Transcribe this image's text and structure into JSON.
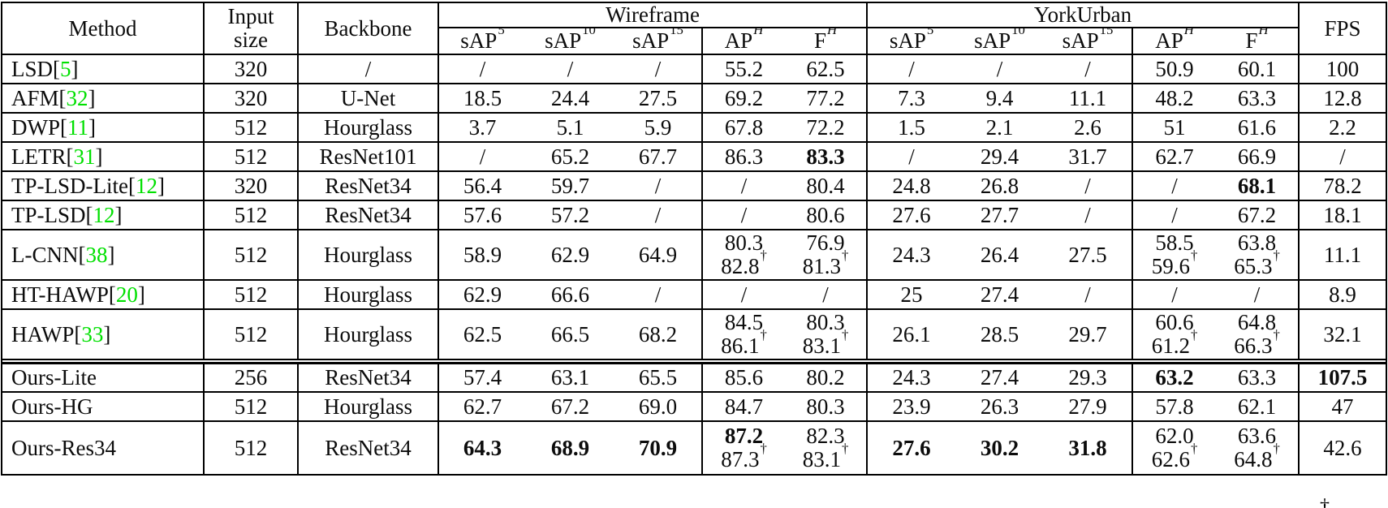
{
  "table": {
    "header": {
      "method": "Method",
      "input_size_lines": [
        "Input",
        "size"
      ],
      "backbone": "Backbone",
      "groups": [
        {
          "label": "Wireframe"
        },
        {
          "label": "YorkUrban"
        }
      ],
      "fps": "FPS",
      "metric_cols": [
        {
          "base": "sAP",
          "sup": "5",
          "italic_sup": false
        },
        {
          "base": "sAP",
          "sup": "10",
          "italic_sup": false
        },
        {
          "base": "sAP",
          "sup": "15",
          "italic_sup": false
        },
        {
          "base": "AP",
          "sup": "H",
          "italic_sup": true
        },
        {
          "base": "F",
          "sup": "H",
          "italic_sup": true
        }
      ]
    },
    "footnote_symbol": "†",
    "colors": {
      "citation_green": "#00e000"
    },
    "rows": [
      {
        "group": "baseline",
        "method": {
          "name": "LSD",
          "ref": "5"
        },
        "input": "320",
        "backbone": "/",
        "wireframe": [
          {
            "t": "/"
          },
          {
            "t": "/"
          },
          {
            "t": "/"
          },
          {
            "t": "55.2"
          },
          {
            "t": "62.5"
          }
        ],
        "yorkurban": [
          {
            "t": "/"
          },
          {
            "t": "/"
          },
          {
            "t": "/"
          },
          {
            "t": "50.9"
          },
          {
            "t": "60.1"
          }
        ],
        "fps": {
          "t": "100"
        }
      },
      {
        "group": "baseline",
        "method": {
          "name": "AFM",
          "ref": "32"
        },
        "input": "320",
        "backbone": "U-Net",
        "wireframe": [
          {
            "t": "18.5"
          },
          {
            "t": "24.4"
          },
          {
            "t": "27.5"
          },
          {
            "t": "69.2"
          },
          {
            "t": "77.2"
          }
        ],
        "yorkurban": [
          {
            "t": "7.3"
          },
          {
            "t": "9.4"
          },
          {
            "t": "11.1"
          },
          {
            "t": "48.2"
          },
          {
            "t": "63.3"
          }
        ],
        "fps": {
          "t": "12.8"
        }
      },
      {
        "group": "baseline",
        "method": {
          "name": "DWP",
          "ref": "11"
        },
        "input": "512",
        "backbone": "Hourglass",
        "wireframe": [
          {
            "t": "3.7"
          },
          {
            "t": "5.1"
          },
          {
            "t": "5.9"
          },
          {
            "t": "67.8"
          },
          {
            "t": "72.2"
          }
        ],
        "yorkurban": [
          {
            "t": "1.5"
          },
          {
            "t": "2.1"
          },
          {
            "t": "2.6"
          },
          {
            "t": "51"
          },
          {
            "t": "61.6"
          }
        ],
        "fps": {
          "t": "2.2"
        }
      },
      {
        "group": "baseline",
        "method": {
          "name": "LETR",
          "ref": "31"
        },
        "input": "512",
        "backbone": "ResNet101",
        "wireframe": [
          {
            "t": "/"
          },
          {
            "t": "65.2"
          },
          {
            "t": "67.7"
          },
          {
            "t": "86.3"
          },
          {
            "t": "83.3",
            "b": true
          }
        ],
        "yorkurban": [
          {
            "t": "/"
          },
          {
            "t": "29.4"
          },
          {
            "t": "31.7"
          },
          {
            "t": "62.7"
          },
          {
            "t": "66.9"
          }
        ],
        "fps": {
          "t": "/"
        }
      },
      {
        "group": "baseline",
        "method": {
          "name": "TP-LSD-Lite",
          "ref": "12"
        },
        "input": "320",
        "backbone": "ResNet34",
        "wireframe": [
          {
            "t": "56.4"
          },
          {
            "t": "59.7"
          },
          {
            "t": "/"
          },
          {
            "t": "/"
          },
          {
            "t": "80.4"
          }
        ],
        "yorkurban": [
          {
            "t": "24.8"
          },
          {
            "t": "26.8"
          },
          {
            "t": "/"
          },
          {
            "t": "/"
          },
          {
            "t": "68.1",
            "b": true
          }
        ],
        "fps": {
          "t": "78.2"
        }
      },
      {
        "group": "baseline",
        "method": {
          "name": "TP-LSD",
          "ref": "12"
        },
        "input": "512",
        "backbone": "ResNet34",
        "wireframe": [
          {
            "t": "57.6"
          },
          {
            "t": "57.2"
          },
          {
            "t": "/"
          },
          {
            "t": "/"
          },
          {
            "t": "80.6"
          }
        ],
        "yorkurban": [
          {
            "t": "27.6"
          },
          {
            "t": "27.7"
          },
          {
            "t": "/"
          },
          {
            "t": "/"
          },
          {
            "t": "67.2"
          }
        ],
        "fps": {
          "t": "18.1"
        }
      },
      {
        "group": "baseline",
        "method": {
          "name": "L-CNN",
          "ref": "38"
        },
        "input": "512",
        "backbone": "Hourglass",
        "wireframe": [
          {
            "t": "58.9"
          },
          {
            "t": "62.9"
          },
          {
            "t": "64.9"
          },
          {
            "lines": [
              {
                "t": "80.3"
              },
              {
                "t": "82.8",
                "dagger": true
              }
            ]
          },
          {
            "lines": [
              {
                "t": "76.9"
              },
              {
                "t": "81.3",
                "dagger": true
              }
            ]
          }
        ],
        "yorkurban": [
          {
            "t": "24.3"
          },
          {
            "t": "26.4"
          },
          {
            "t": "27.5"
          },
          {
            "lines": [
              {
                "t": "58.5"
              },
              {
                "t": "59.6",
                "dagger": true
              }
            ]
          },
          {
            "lines": [
              {
                "t": "63.8"
              },
              {
                "t": "65.3",
                "dagger": true
              }
            ]
          }
        ],
        "fps": {
          "t": "11.1"
        }
      },
      {
        "group": "baseline",
        "method": {
          "name": "HT-HAWP",
          "ref": "20"
        },
        "input": "512",
        "backbone": "Hourglass",
        "wireframe": [
          {
            "t": "62.9"
          },
          {
            "t": "66.6"
          },
          {
            "t": "/"
          },
          {
            "t": "/"
          },
          {
            "t": "/"
          }
        ],
        "yorkurban": [
          {
            "t": "25"
          },
          {
            "t": "27.4"
          },
          {
            "t": "/"
          },
          {
            "t": "/"
          },
          {
            "t": "/"
          }
        ],
        "fps": {
          "t": "8.9"
        }
      },
      {
        "group": "baseline",
        "method": {
          "name": "HAWP",
          "ref": "33"
        },
        "input": "512",
        "backbone": "Hourglass",
        "wireframe": [
          {
            "t": "62.5"
          },
          {
            "t": "66.5"
          },
          {
            "t": "68.2"
          },
          {
            "lines": [
              {
                "t": "84.5"
              },
              {
                "t": "86.1",
                "dagger": true
              }
            ]
          },
          {
            "lines": [
              {
                "t": "80.3"
              },
              {
                "t": "83.1",
                "dagger": true
              }
            ]
          }
        ],
        "yorkurban": [
          {
            "t": "26.1"
          },
          {
            "t": "28.5"
          },
          {
            "t": "29.7"
          },
          {
            "lines": [
              {
                "t": "60.6"
              },
              {
                "t": "61.2",
                "dagger": true
              }
            ]
          },
          {
            "lines": [
              {
                "t": "64.8"
              },
              {
                "t": "66.3",
                "dagger": true
              }
            ]
          }
        ],
        "fps": {
          "t": "32.1"
        }
      },
      {
        "group": "ours",
        "method": {
          "name": "Ours-Lite",
          "ref": null
        },
        "input": "256",
        "backbone": "ResNet34",
        "wireframe": [
          {
            "t": "57.4"
          },
          {
            "t": "63.1"
          },
          {
            "t": "65.5"
          },
          {
            "t": "85.6"
          },
          {
            "t": "80.2"
          }
        ],
        "yorkurban": [
          {
            "t": "24.3"
          },
          {
            "t": "27.4"
          },
          {
            "t": "29.3"
          },
          {
            "t": "63.2",
            "b": true
          },
          {
            "t": "63.3"
          }
        ],
        "fps": {
          "t": "107.5",
          "b": true
        }
      },
      {
        "group": "ours",
        "method": {
          "name": "Ours-HG",
          "ref": null
        },
        "input": "512",
        "backbone": "Hourglass",
        "wireframe": [
          {
            "t": "62.7"
          },
          {
            "t": "67.2"
          },
          {
            "t": "69.0"
          },
          {
            "t": "84.7"
          },
          {
            "t": "80.3"
          }
        ],
        "yorkurban": [
          {
            "t": "23.9"
          },
          {
            "t": "26.3"
          },
          {
            "t": "27.9"
          },
          {
            "t": "57.8"
          },
          {
            "t": "62.1"
          }
        ],
        "fps": {
          "t": "47"
        }
      },
      {
        "group": "ours",
        "method": {
          "name": "Ours-Res34",
          "ref": null
        },
        "input": "512",
        "backbone": "ResNet34",
        "wireframe": [
          {
            "t": "64.3",
            "b": true
          },
          {
            "t": "68.9",
            "b": true
          },
          {
            "t": "70.9",
            "b": true
          },
          {
            "lines": [
              {
                "t": "87.2",
                "b": true
              },
              {
                "t": "87.3",
                "dagger": true
              }
            ]
          },
          {
            "lines": [
              {
                "t": "82.3"
              },
              {
                "t": "83.1",
                "dagger": true
              }
            ]
          }
        ],
        "yorkurban": [
          {
            "t": "27.6",
            "b": true
          },
          {
            "t": "30.2",
            "b": true
          },
          {
            "t": "31.8",
            "b": true
          },
          {
            "lines": [
              {
                "t": "62.0"
              },
              {
                "t": "62.6",
                "dagger": true
              }
            ]
          },
          {
            "lines": [
              {
                "t": "63.6"
              },
              {
                "t": "64.8",
                "dagger": true
              }
            ]
          }
        ],
        "fps": {
          "t": "42.6"
        }
      }
    ]
  }
}
